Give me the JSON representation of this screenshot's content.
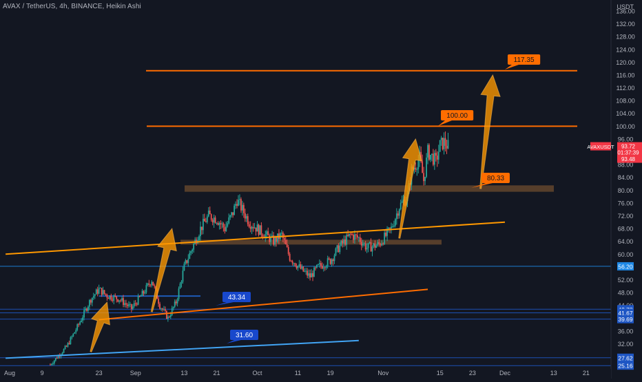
{
  "header": {
    "title": "AVAX / TetherUS, 4h, BINANCE, Heikin Ashi",
    "currency": "USDT"
  },
  "chart_data": {
    "type": "candlestick",
    "title": "AVAX / TetherUS, 4h, BINANCE, Heikin Ashi",
    "symbol": "AVAXUSDT",
    "ylim": [
      24,
      138
    ],
    "y_ticks": [
      136,
      132,
      128,
      124,
      120,
      116,
      112,
      108,
      104,
      100,
      96,
      92,
      88,
      84,
      80,
      76,
      72,
      68,
      64,
      60,
      56,
      52,
      48,
      44,
      40,
      36,
      32,
      28
    ],
    "y_tick_labels": [
      "136.00",
      "132.00",
      "128.00",
      "124.00",
      "120.00",
      "116.00",
      "112.00",
      "108.00",
      "104.00",
      "100.00",
      "96.00",
      "92.00",
      "88.00",
      "84.00",
      "80.00",
      "76.00",
      "72.00",
      "68.00",
      "64.00",
      "60.00",
      "56.00",
      "52.00",
      "48.00",
      "44.00",
      "40.00",
      "36.00",
      "32.00",
      "28.00"
    ],
    "x_ticks": [
      "Aug",
      "9",
      "23",
      "Sep",
      "13",
      "21",
      "Oct",
      "11",
      "19",
      "Nov",
      "15",
      "23",
      "Dec",
      "13",
      "21"
    ],
    "x_tick_dates": [
      "2021-08-01",
      "2021-08-09",
      "2021-08-23",
      "2021-09-01",
      "2021-09-13",
      "2021-09-21",
      "2021-10-01",
      "2021-10-11",
      "2021-10-19",
      "2021-11-01",
      "2021-11-15",
      "2021-11-23",
      "2021-12-01",
      "2021-12-13",
      "2021-12-21"
    ],
    "price_path": [
      [
        "2021-08-11",
        25.5
      ],
      [
        "2021-08-15",
        31
      ],
      [
        "2021-08-18",
        38
      ],
      [
        "2021-08-21",
        46
      ],
      [
        "2021-08-23",
        49
      ],
      [
        "2021-08-25",
        47
      ],
      [
        "2021-08-28",
        46
      ],
      [
        "2021-08-31",
        43
      ],
      [
        "2021-09-03",
        48
      ],
      [
        "2021-09-05",
        52
      ],
      [
        "2021-09-07",
        44
      ],
      [
        "2021-09-09",
        40
      ],
      [
        "2021-09-11",
        45
      ],
      [
        "2021-09-13",
        56
      ],
      [
        "2021-09-15",
        62
      ],
      [
        "2021-09-17",
        68
      ],
      [
        "2021-09-19",
        72
      ],
      [
        "2021-09-21",
        71
      ],
      [
        "2021-09-23",
        68
      ],
      [
        "2021-09-25",
        73
      ],
      [
        "2021-09-26",
        77
      ],
      [
        "2021-09-29",
        70
      ],
      [
        "2021-10-02",
        67
      ],
      [
        "2021-10-05",
        64
      ],
      [
        "2021-10-07",
        66
      ],
      [
        "2021-10-09",
        59
      ],
      [
        "2021-10-12",
        55
      ],
      [
        "2021-10-14",
        53
      ],
      [
        "2021-10-16",
        56
      ],
      [
        "2021-10-19",
        58
      ],
      [
        "2021-10-21",
        62
      ],
      [
        "2021-10-24",
        66
      ],
      [
        "2021-10-26",
        65
      ],
      [
        "2021-10-28",
        62
      ],
      [
        "2021-10-31",
        63
      ],
      [
        "2021-11-03",
        68
      ],
      [
        "2021-11-05",
        75
      ],
      [
        "2021-11-07",
        78
      ],
      [
        "2021-11-08",
        86
      ],
      [
        "2021-11-10",
        90
      ],
      [
        "2021-11-11",
        83
      ],
      [
        "2021-11-12",
        92
      ],
      [
        "2021-11-14",
        89
      ],
      [
        "2021-11-15",
        94
      ],
      [
        "2021-11-16",
        95
      ],
      [
        "2021-11-17",
        93.72
      ]
    ],
    "horizontal_lines": [
      {
        "label": "117.35",
        "value": 117.35,
        "color": "#ff6d00"
      },
      {
        "label": "100.00",
        "value": 100.0,
        "color": "#ff6d00"
      }
    ],
    "zones": [
      {
        "from": 79.5,
        "to": 81.5,
        "color": "#6d4c2f"
      },
      {
        "from": 63,
        "to": 64.5,
        "color": "#6d4c2f"
      }
    ],
    "trendlines": [
      {
        "name": "upper-channel",
        "color": "#ff9800",
        "points": [
          [
            "2021-07-31",
            60
          ],
          [
            "2021-12-01",
            70
          ]
        ]
      },
      {
        "name": "mid-channel",
        "color": "#ff6d00",
        "points": [
          [
            "2021-08-23",
            39.5
          ],
          [
            "2021-11-12",
            49
          ]
        ]
      },
      {
        "name": "lower-support",
        "color": "#42a5f5",
        "points": [
          [
            "2021-07-31",
            27.5
          ],
          [
            "2021-10-26",
            33
          ]
        ]
      }
    ],
    "level_segments": [
      {
        "value": 46.9,
        "from": "2021-08-23",
        "to": "2021-09-17",
        "color": "#1e5bb8"
      }
    ],
    "callouts": [
      {
        "text": "117.35",
        "value": 117.35,
        "at": "2021-11-30"
      },
      {
        "text": "100.00",
        "value": 100.0,
        "at": "2021-11-17"
      },
      {
        "text": "80.33",
        "value": 80.33,
        "at": "2021-11-25"
      },
      {
        "text": "43.34",
        "value": 43.34,
        "at": "2021-09-29"
      },
      {
        "text": "31.60",
        "value": 31.6,
        "at": "2021-09-30"
      }
    ],
    "arrows": [
      {
        "from": [
          "2021-08-21",
          29.5
        ],
        "to": [
          "2021-08-25",
          45
        ],
        "color": "#ff9800"
      },
      {
        "from": [
          "2021-09-05",
          42
        ],
        "to": [
          "2021-09-10",
          68
        ],
        "color": "#ff9800"
      },
      {
        "from": [
          "2021-11-05",
          65
        ],
        "to": [
          "2021-11-09",
          96
        ],
        "color": "#ff9800"
      },
      {
        "from": [
          "2021-11-25",
          80.5
        ],
        "to": [
          "2021-11-28",
          116
        ],
        "color": "#ff9800"
      }
    ],
    "h_levels": [
      {
        "label": "56.20",
        "value": 56.2,
        "color": "#1e88e5"
      },
      {
        "label": "42.78",
        "value": 42.78,
        "color": "#1e56c4"
      },
      {
        "label": "41.67",
        "value": 41.67,
        "color": "#1e56c4"
      },
      {
        "label": "39.69",
        "value": 39.69,
        "color": "#1e56c4"
      },
      {
        "label": "27.62",
        "value": 27.62,
        "color": "#1e56c4"
      },
      {
        "label": "25.16",
        "value": 25.16,
        "color": "#1e56c4"
      }
    ],
    "price_tag": {
      "symbol": "AVAXUSDT",
      "lines": [
        "93.72",
        "01:37:39",
        "93.48"
      ],
      "value": 93.72,
      "color": "#f23645"
    },
    "grid": false,
    "colors": {
      "up": "#26a69a",
      "down": "#ef5350",
      "background": "#131722",
      "axis_text": "#b2b5be"
    }
  }
}
